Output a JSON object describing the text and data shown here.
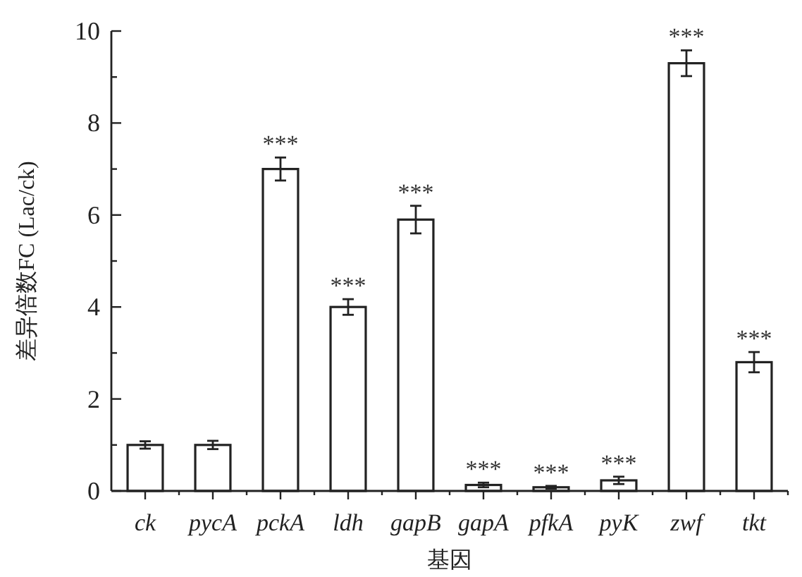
{
  "chart_data": {
    "type": "bar",
    "xlabel": "基因",
    "ylabel": "差异倍数FC (Lac/ck)",
    "categories": [
      "ck",
      "pycA",
      "pckA",
      "ldh",
      "gapB",
      "gapA",
      "pfkA",
      "pyK",
      "zwf",
      "tkt"
    ],
    "values": [
      1.0,
      1.0,
      7.0,
      4.0,
      5.9,
      0.13,
      0.08,
      0.23,
      9.3,
      2.8
    ],
    "errors": [
      0.08,
      0.09,
      0.25,
      0.17,
      0.3,
      0.05,
      0.03,
      0.08,
      0.28,
      0.22
    ],
    "color": "#ffffff",
    "ylim": [
      0,
      10
    ],
    "yticks": [
      0,
      {
        "value": 1,
        "label": null
      },
      2,
      {
        "value": 3,
        "label": null
      },
      4,
      {
        "value": 5,
        "label": null
      },
      6,
      {
        "value": 7,
        "label": null
      },
      8,
      {
        "value": 9,
        "label": null
      },
      10
    ],
    "annotations": [
      {
        "text": "***",
        "x": "pckA",
        "y": 7.25
      },
      {
        "text": "***",
        "x": "ldh",
        "y": 4.17
      },
      {
        "text": "***",
        "x": "gapB",
        "y": 6.2
      },
      {
        "text": "***",
        "x": "gapA",
        "y": 0.18
      },
      {
        "text": "***",
        "x": "pfkA",
        "y": 0.11
      },
      {
        "text": "***",
        "x": "pyK",
        "y": 0.31
      },
      {
        "text": "***",
        "x": "zwf",
        "y": 9.58
      },
      {
        "text": "***",
        "x": "tkt",
        "y": 3.02
      }
    ]
  }
}
